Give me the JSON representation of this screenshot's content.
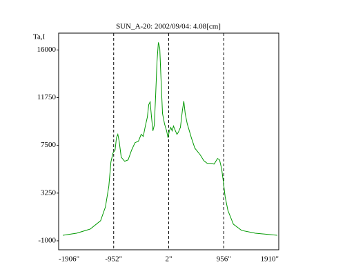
{
  "chart_data": {
    "type": "line",
    "title": "SUN_A-20: 2002/09/04: 4.08[cm]",
    "y_label": "Ta,I",
    "xlim": [
      -1906,
      1910
    ],
    "ylim": [
      -1800,
      17500
    ],
    "xticks": [
      {
        "value": -1906,
        "label": "-1906\""
      },
      {
        "value": -952,
        "label": "-952\""
      },
      {
        "value": 2,
        "label": "2\""
      },
      {
        "value": 956,
        "label": "956\""
      },
      {
        "value": 1910,
        "label": "1910\""
      }
    ],
    "yticks": [
      -1000,
      3250,
      7500,
      11750,
      16000
    ],
    "grid": true,
    "x": [
      -1834,
      -1596,
      -1358,
      -1179,
      -1095,
      -1036,
      -1000,
      -964,
      -928,
      -904,
      -880,
      -857,
      -821,
      -761,
      -702,
      -642,
      -582,
      -523,
      -475,
      -439,
      -403,
      -368,
      -344,
      -320,
      -296,
      -272,
      -248,
      -225,
      -201,
      -177,
      -153,
      -129,
      -105,
      -70,
      -34,
      -10,
      14,
      38,
      62,
      85,
      109,
      145,
      169,
      205,
      240,
      264,
      288,
      324,
      360,
      395,
      455,
      503,
      551,
      610,
      670,
      729,
      789,
      849,
      884,
      920,
      944,
      980,
      1028,
      1123,
      1266,
      1505,
      1886
    ],
    "series": [
      {
        "name": "Ta,I",
        "color": "#009900",
        "values": [
          -507,
          -323,
          47,
          786,
          2017,
          3865,
          6020,
          6821,
          7067,
          8175,
          8483,
          7868,
          6451,
          6082,
          6205,
          7067,
          7744,
          7868,
          8483,
          8299,
          9222,
          10023,
          11131,
          11378,
          10023,
          8791,
          9284,
          11870,
          14949,
          16673,
          16181,
          13102,
          10331,
          9407,
          8791,
          8175,
          8791,
          9099,
          8791,
          9222,
          8914,
          8483,
          8668,
          9099,
          10639,
          11439,
          10331,
          9407,
          8791,
          8175,
          7252,
          6944,
          6636,
          6143,
          5897,
          5897,
          5835,
          6328,
          6205,
          5404,
          4481,
          2941,
          1710,
          478,
          -76,
          -323,
          -507
        ]
      }
    ]
  }
}
